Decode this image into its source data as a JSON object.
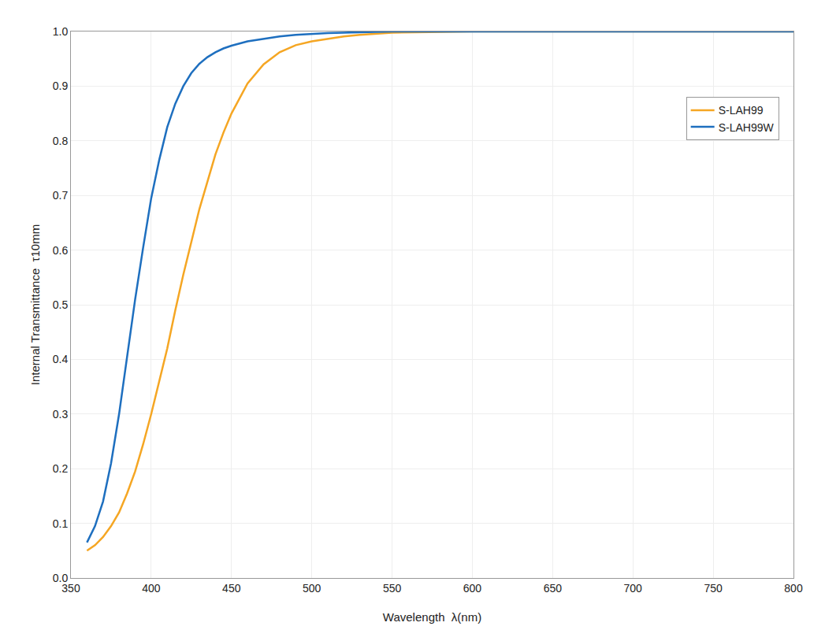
{
  "chart_data": {
    "type": "line",
    "xlabel": "Wavelength  λ(nm)",
    "ylabel": "Internal Transmittance  τ10mm",
    "x": [
      360,
      365,
      370,
      375,
      380,
      385,
      390,
      395,
      400,
      405,
      410,
      415,
      420,
      425,
      430,
      435,
      440,
      445,
      450,
      460,
      470,
      480,
      490,
      500,
      510,
      520,
      530,
      540,
      550,
      600,
      650,
      700,
      750,
      800
    ],
    "series": [
      {
        "name": "S-LAH99",
        "color": "#F5A623",
        "values": [
          0.05,
          0.06,
          0.075,
          0.095,
          0.12,
          0.155,
          0.195,
          0.245,
          0.3,
          0.36,
          0.42,
          0.49,
          0.555,
          0.615,
          0.675,
          0.725,
          0.775,
          0.815,
          0.85,
          0.905,
          0.94,
          0.962,
          0.975,
          0.982,
          0.987,
          0.991,
          0.994,
          0.996,
          0.998,
          1.0,
          1.0,
          1.0,
          1.0,
          1.0
        ]
      },
      {
        "name": "S-LAH99W",
        "color": "#1E6FBF",
        "values": [
          0.065,
          0.095,
          0.14,
          0.21,
          0.3,
          0.405,
          0.51,
          0.605,
          0.695,
          0.765,
          0.825,
          0.868,
          0.9,
          0.924,
          0.941,
          0.953,
          0.962,
          0.969,
          0.974,
          0.982,
          0.987,
          0.991,
          0.994,
          0.996,
          0.997,
          0.998,
          0.999,
          0.999,
          1.0,
          1.0,
          1.0,
          1.0,
          1.0,
          1.0
        ]
      }
    ],
    "xlim": [
      350,
      800
    ],
    "ylim": [
      0.0,
      1.0
    ],
    "xticks": [
      350,
      400,
      450,
      500,
      550,
      600,
      650,
      700,
      750,
      800
    ],
    "yticks": [
      {
        "value": 0.0,
        "label": "0.0"
      },
      0.1,
      0.2,
      0.3,
      0.4,
      0.5,
      0.6,
      0.7,
      0.8,
      0.9,
      {
        "value": 1.0,
        "label": "1.0"
      }
    ],
    "grid": true,
    "legend": "upper right"
  }
}
